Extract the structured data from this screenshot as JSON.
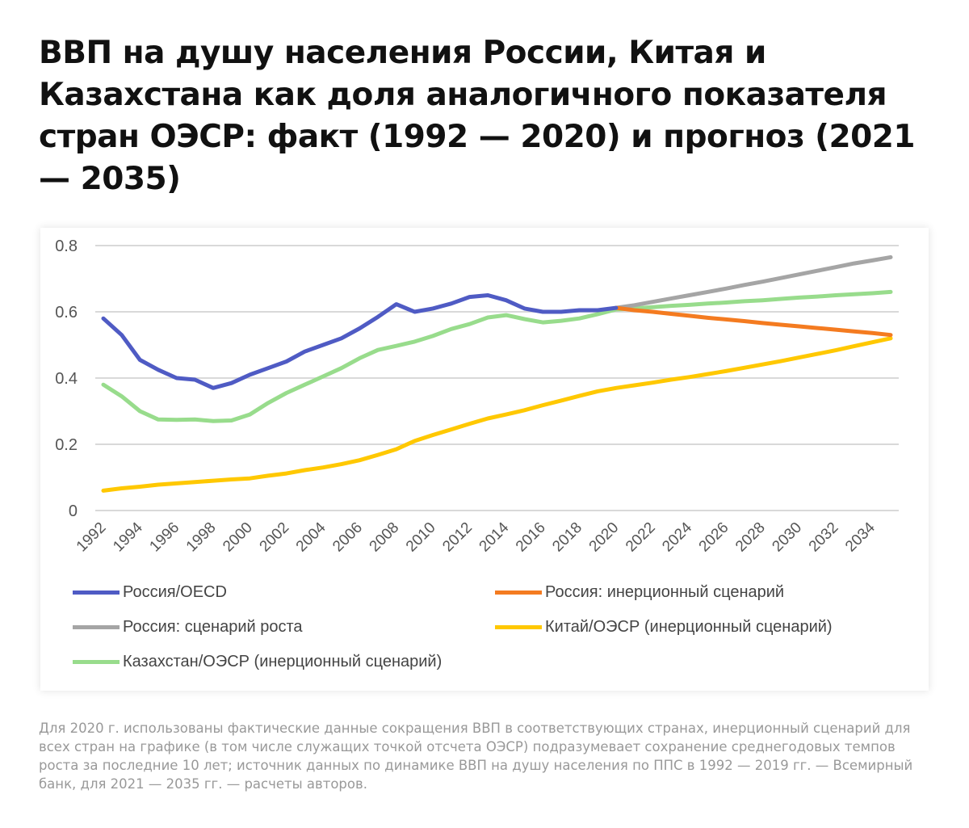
{
  "title": "ВВП на душу населения России, Китая и Казахстана как доля аналогичного показателя стран ОЭСР: факт (1992 — 2020) и прогноз (2021 — 2035)",
  "footnote": "Для 2020 г. использованы фактические данные сокращения ВВП в соответствующих странах, инерционный сценарий для всех стран на графике (в том числе служащих точкой отсчета ОЭСР) подразумевает сохранение среднегодовых темпов роста за последние 10 лет; источник данных по динамике ВВП на душу населения по ППС в 1992 — 2019 гг. — Всемирный банк, для 2021 — 2035 гг. — расчеты авторов.",
  "chart_data": {
    "type": "line",
    "title": "",
    "xlabel": "",
    "ylabel": "",
    "ylim": [
      0,
      0.8
    ],
    "yticks": [
      "0",
      "0.2",
      "0.4",
      "0.6",
      "0.8"
    ],
    "xlim": [
      1992,
      2035
    ],
    "xticks": [
      "1992",
      "1994",
      "1996",
      "1998",
      "2000",
      "2002",
      "2004",
      "2006",
      "2008",
      "2010",
      "2012",
      "2014",
      "2016",
      "2018",
      "2020",
      "2022",
      "2024",
      "2026",
      "2028",
      "2030",
      "2032",
      "2034"
    ],
    "grid": true,
    "legend_position": "bottom",
    "series": [
      {
        "name": "Россия/OECD",
        "color": "#4f5bc4",
        "start": 1992,
        "values": [
          0.58,
          0.53,
          0.455,
          0.425,
          0.4,
          0.395,
          0.37,
          0.385,
          0.41,
          0.43,
          0.45,
          0.48,
          0.5,
          0.52,
          0.55,
          0.585,
          0.623,
          0.6,
          0.61,
          0.625,
          0.645,
          0.65,
          0.635,
          0.61,
          0.6,
          0.6,
          0.605,
          0.605,
          0.612
        ]
      },
      {
        "name": "Россия: инерционный сценарий",
        "color": "#f47b20",
        "start": 2020,
        "values": [
          0.612,
          0.605,
          0.6,
          0.594,
          0.588,
          0.582,
          0.577,
          0.572,
          0.566,
          0.561,
          0.556,
          0.551,
          0.546,
          0.541,
          0.536,
          0.53
        ]
      },
      {
        "name": "Россия: сценарий роста",
        "color": "#a5a5a5",
        "start": 2020,
        "values": [
          0.612,
          0.62,
          0.63,
          0.64,
          0.65,
          0.66,
          0.67,
          0.681,
          0.691,
          0.702,
          0.713,
          0.724,
          0.735,
          0.746,
          0.755,
          0.765
        ]
      },
      {
        "name": "Китай/ОЭСР (инерционный сценарий)",
        "color": "#ffc800",
        "start": 1992,
        "values": [
          0.06,
          0.067,
          0.072,
          0.078,
          0.082,
          0.086,
          0.09,
          0.094,
          0.097,
          0.105,
          0.112,
          0.122,
          0.13,
          0.14,
          0.152,
          0.168,
          0.185,
          0.21,
          0.228,
          0.245,
          0.262,
          0.278,
          0.29,
          0.303,
          0.318,
          0.332,
          0.346,
          0.36,
          0.37,
          0.378,
          0.386,
          0.395,
          0.403,
          0.412,
          0.421,
          0.431,
          0.441,
          0.451,
          0.462,
          0.473,
          0.484,
          0.496,
          0.508,
          0.52
        ]
      },
      {
        "name": "Казахстан/ОЭСР (инерционный сценарий)",
        "color": "#98dc8c",
        "start": 1992,
        "values": [
          0.38,
          0.345,
          0.3,
          0.275,
          0.274,
          0.275,
          0.27,
          0.272,
          0.29,
          0.325,
          0.355,
          0.38,
          0.405,
          0.43,
          0.46,
          0.485,
          0.497,
          0.51,
          0.527,
          0.548,
          0.563,
          0.583,
          0.59,
          0.578,
          0.568,
          0.573,
          0.58,
          0.593,
          0.607,
          0.61,
          0.614,
          0.618,
          0.621,
          0.625,
          0.628,
          0.632,
          0.635,
          0.639,
          0.643,
          0.646,
          0.65,
          0.653,
          0.656,
          0.66
        ]
      }
    ]
  }
}
